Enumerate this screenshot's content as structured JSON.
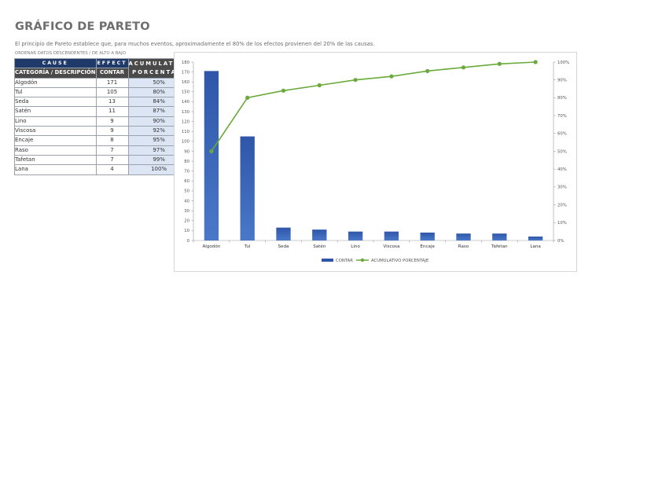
{
  "page": {
    "title": "GRÁFICO DE PARETO",
    "description": "El principio de Pareto establece que, para muchos eventos, aproximadamente el 80% de los efectos provienen del 20% de las causas.",
    "note": "ORDENAR DATOS DESCENDENTES / DE ALTO A BAJO"
  },
  "table": {
    "header_cause": "CAUSE",
    "header_effect": "EFFECT",
    "header_cumulative": "ACUMULATIVO PORCENTAJE",
    "col_category": "CATEGORÍA / DESCRIPCIÓN",
    "col_count": "CONTAR",
    "rows": [
      {
        "category": "Algodón",
        "count": "171",
        "pct": "50%"
      },
      {
        "category": "Tul",
        "count": "105",
        "pct": "80%"
      },
      {
        "category": "Seda",
        "count": "13",
        "pct": "84%"
      },
      {
        "category": "Satén",
        "count": "11",
        "pct": "87%"
      },
      {
        "category": "Lino",
        "count": "9",
        "pct": "90%"
      },
      {
        "category": "Viscosa",
        "count": "9",
        "pct": "92%"
      },
      {
        "category": "Encaje",
        "count": "8",
        "pct": "95%"
      },
      {
        "category": "Raso",
        "count": "7",
        "pct": "97%"
      },
      {
        "category": "Tafetan",
        "count": "7",
        "pct": "99%"
      },
      {
        "category": "Lana",
        "count": "4",
        "pct": "100%"
      }
    ]
  },
  "chart_data": {
    "type": "bar",
    "categories": [
      "Algodón",
      "Tul",
      "Seda",
      "Satén",
      "Lino",
      "Viscosa",
      "Encaje",
      "Raso",
      "Tafetan",
      "Lana"
    ],
    "series": [
      {
        "name": "CONTAR",
        "type": "bar",
        "axis": "left",
        "values": [
          171,
          105,
          13,
          11,
          9,
          9,
          8,
          7,
          7,
          4
        ]
      },
      {
        "name": "ACUMULATIVO PORCENTAJE",
        "type": "line",
        "axis": "right",
        "values": [
          50,
          80,
          84,
          87,
          90,
          92,
          95,
          97,
          99,
          100
        ]
      }
    ],
    "ylim": [
      0,
      180
    ],
    "yticks": [
      0,
      10,
      20,
      30,
      40,
      50,
      60,
      70,
      80,
      90,
      100,
      110,
      120,
      130,
      140,
      150,
      160,
      170,
      180
    ],
    "y2lim": [
      0,
      100
    ],
    "y2ticks": [
      "0%",
      "10%",
      "20%",
      "30%",
      "40%",
      "50%",
      "60%",
      "70%",
      "80%",
      "90%",
      "100%"
    ],
    "legend_position": "bottom",
    "grid": false,
    "colors": {
      "bar": "#2f56a8",
      "bar_light": "#4a78c8",
      "line": "#6aaa3a"
    }
  }
}
